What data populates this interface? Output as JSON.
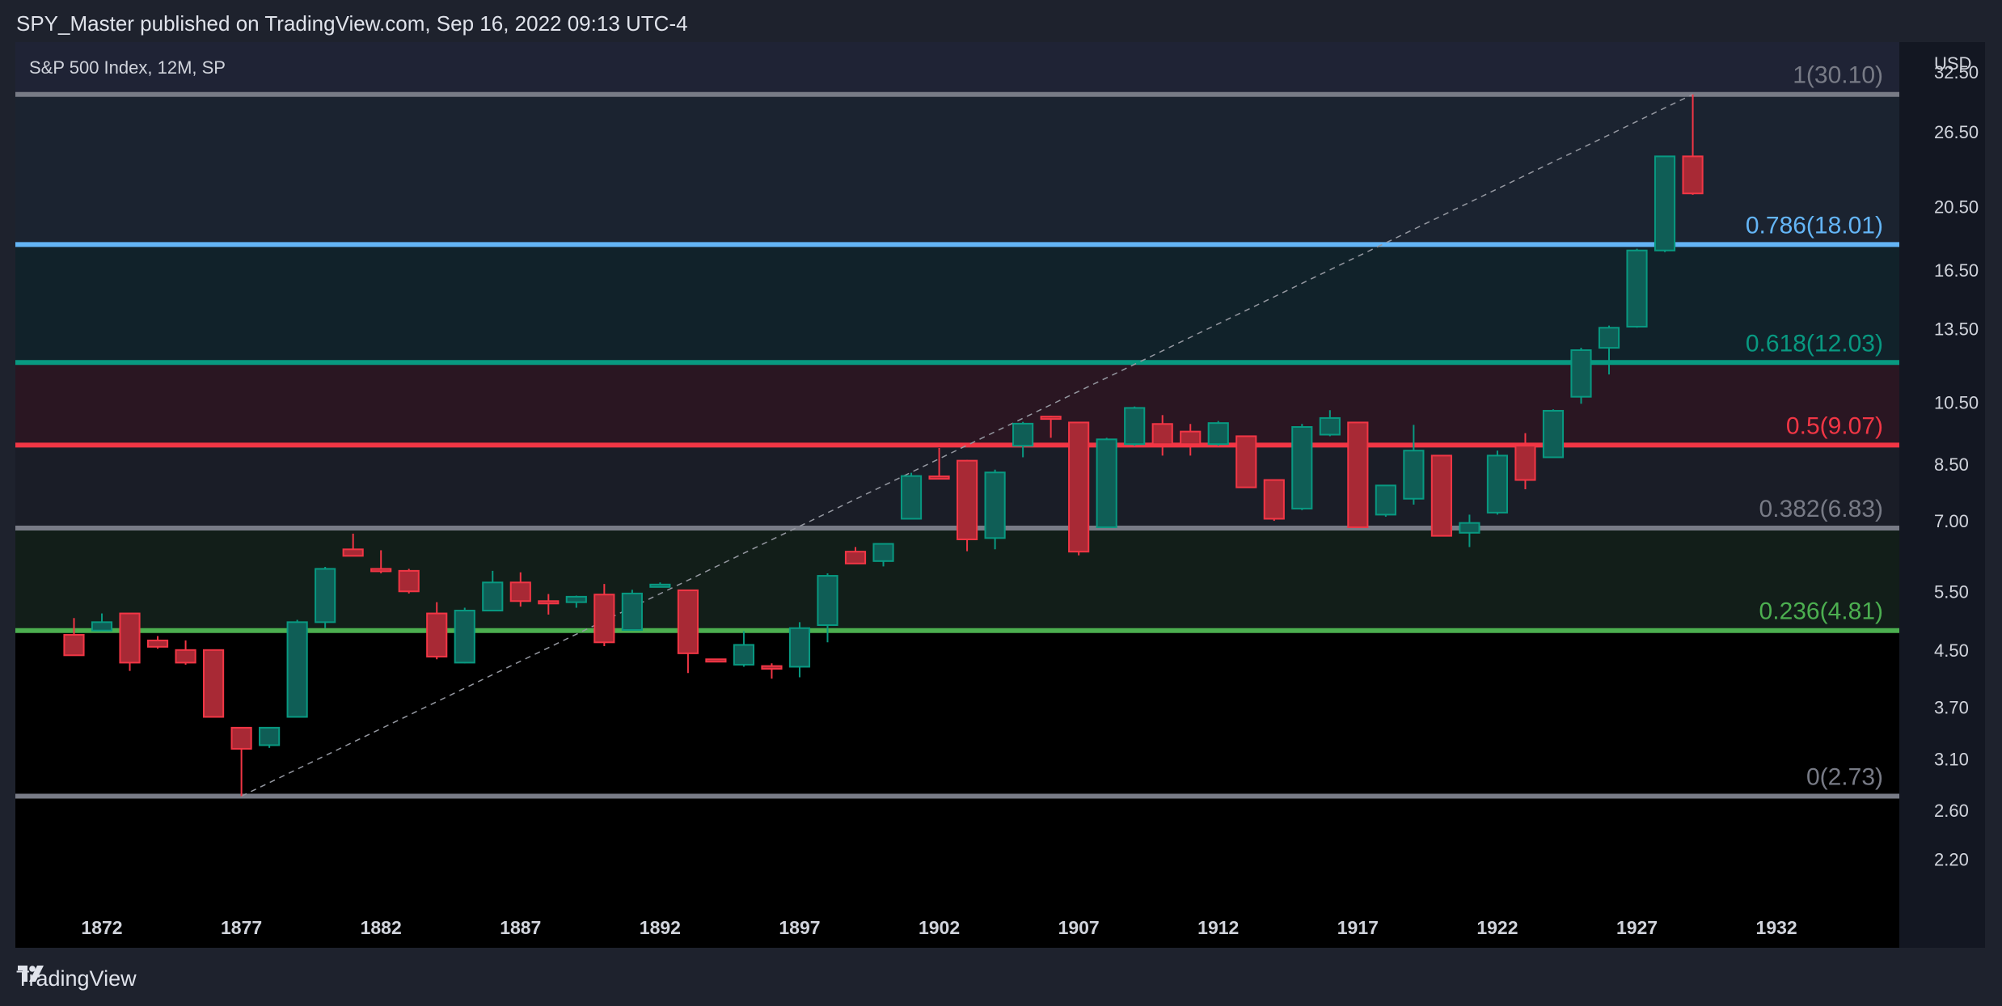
{
  "header": {
    "published": "SPY_Master published on TradingView.com, Sep 16, 2022 09:13 UTC-4"
  },
  "footer": {
    "brand": "TradingView"
  },
  "chart_data": {
    "type": "candlestick",
    "title": "S&P 500 Index, 12M, SP",
    "currency": "USD",
    "scale": "log",
    "ylim": [
      2.0,
      36.0
    ],
    "xlim": [
      1868.9,
      1936.4
    ],
    "y_ticks": [
      "32.50",
      "26.50",
      "20.50",
      "16.50",
      "13.50",
      "10.50",
      "8.50",
      "7.00",
      "5.50",
      "4.50",
      "3.70",
      "3.10",
      "2.60",
      "2.20"
    ],
    "x_ticks": [
      "1872",
      "1877",
      "1882",
      "1887",
      "1892",
      "1897",
      "1902",
      "1907",
      "1912",
      "1917",
      "1922",
      "1927",
      "1932"
    ],
    "fib_levels": [
      {
        "level": "1",
        "price": 30.1,
        "label": "1(30.10)",
        "color": "#787b86",
        "fill": "#1f2335"
      },
      {
        "level": "0.786",
        "price": 18.01,
        "label": "0.786(18.01)",
        "color": "#64b5f6",
        "fill": "#1b2330"
      },
      {
        "level": "0.618",
        "price": 12.03,
        "label": "0.618(12.03)",
        "color": "#089981",
        "fill": "#11222a"
      },
      {
        "level": "0.5",
        "price": 9.07,
        "label": "0.5(9.07)",
        "color": "#f23645",
        "fill": "#2a1622"
      },
      {
        "level": "0.382",
        "price": 6.83,
        "label": "0.382(6.83)",
        "color": "#787b86",
        "fill": "#1a1d27"
      },
      {
        "level": "0.236",
        "price": 4.81,
        "label": "0.236(4.81)",
        "color": "#4caf50",
        "fill": "#121e19"
      },
      {
        "level": "0",
        "price": 2.73,
        "label": "0(2.73)",
        "color": "#787b86",
        "fill": "#000000"
      }
    ],
    "trend_line": {
      "from": {
        "year": 1877,
        "price": 2.73
      },
      "to": {
        "year": 1929,
        "price": 30.1
      }
    },
    "candles": [
      {
        "year": 1871,
        "o": 4.74,
        "h": 5.02,
        "l": 4.42,
        "c": 4.42
      },
      {
        "year": 1872,
        "o": 4.81,
        "h": 5.1,
        "l": 4.85,
        "c": 4.95
      },
      {
        "year": 1873,
        "o": 5.1,
        "h": 5.1,
        "l": 4.19,
        "c": 4.31
      },
      {
        "year": 1874,
        "o": 4.65,
        "h": 4.72,
        "l": 4.52,
        "c": 4.55
      },
      {
        "year": 1875,
        "o": 4.5,
        "h": 4.65,
        "l": 4.28,
        "c": 4.31
      },
      {
        "year": 1876,
        "o": 4.5,
        "h": 4.5,
        "l": 3.58,
        "c": 3.58
      },
      {
        "year": 1877,
        "o": 3.45,
        "h": 3.45,
        "l": 2.73,
        "c": 3.21
      },
      {
        "year": 1878,
        "o": 3.25,
        "h": 3.45,
        "l": 3.22,
        "c": 3.45
      },
      {
        "year": 1879,
        "o": 3.58,
        "h": 4.99,
        "l": 3.58,
        "c": 4.95
      },
      {
        "year": 1880,
        "o": 4.95,
        "h": 5.98,
        "l": 4.85,
        "c": 5.94
      },
      {
        "year": 1881,
        "o": 6.35,
        "h": 6.7,
        "l": 6.21,
        "c": 6.21
      },
      {
        "year": 1882,
        "o": 5.94,
        "h": 6.33,
        "l": 5.85,
        "c": 5.9
      },
      {
        "year": 1883,
        "o": 5.9,
        "h": 5.94,
        "l": 5.46,
        "c": 5.5
      },
      {
        "year": 1884,
        "o": 5.1,
        "h": 5.3,
        "l": 4.36,
        "c": 4.4
      },
      {
        "year": 1885,
        "o": 4.31,
        "h": 5.2,
        "l": 4.3,
        "c": 5.15
      },
      {
        "year": 1886,
        "o": 5.15,
        "h": 5.9,
        "l": 5.15,
        "c": 5.67
      },
      {
        "year": 1887,
        "o": 5.67,
        "h": 5.87,
        "l": 5.22,
        "c": 5.32
      },
      {
        "year": 1888,
        "o": 5.32,
        "h": 5.45,
        "l": 5.08,
        "c": 5.3
      },
      {
        "year": 1889,
        "o": 5.3,
        "h": 5.42,
        "l": 5.2,
        "c": 5.4
      },
      {
        "year": 1890,
        "o": 5.44,
        "h": 5.64,
        "l": 4.56,
        "c": 4.62
      },
      {
        "year": 1891,
        "o": 4.82,
        "h": 5.53,
        "l": 4.85,
        "c": 5.46
      },
      {
        "year": 1892,
        "o": 5.62,
        "h": 5.67,
        "l": 5.6,
        "c": 5.63
      },
      {
        "year": 1893,
        "o": 5.52,
        "h": 5.53,
        "l": 4.16,
        "c": 4.45
      },
      {
        "year": 1894,
        "o": 4.36,
        "h": 4.36,
        "l": 4.32,
        "c": 4.34
      },
      {
        "year": 1895,
        "o": 4.28,
        "h": 4.8,
        "l": 4.25,
        "c": 4.58
      },
      {
        "year": 1896,
        "o": 4.26,
        "h": 4.3,
        "l": 4.08,
        "c": 4.22
      },
      {
        "year": 1897,
        "o": 4.25,
        "h": 4.95,
        "l": 4.1,
        "c": 4.85
      },
      {
        "year": 1898,
        "o": 4.9,
        "h": 5.85,
        "l": 4.62,
        "c": 5.8
      },
      {
        "year": 1899,
        "o": 6.3,
        "h": 6.4,
        "l": 6.05,
        "c": 6.05
      },
      {
        "year": 1900,
        "o": 6.1,
        "h": 6.47,
        "l": 5.99,
        "c": 6.47
      },
      {
        "year": 1901,
        "o": 7.05,
        "h": 8.25,
        "l": 7.05,
        "c": 8.16
      },
      {
        "year": 1902,
        "o": 8.15,
        "h": 8.98,
        "l": 8.07,
        "c": 8.1
      },
      {
        "year": 1903,
        "o": 8.6,
        "h": 8.62,
        "l": 6.31,
        "c": 6.57
      },
      {
        "year": 1904,
        "o": 6.6,
        "h": 8.34,
        "l": 6.35,
        "c": 8.26
      },
      {
        "year": 1905,
        "o": 9.05,
        "h": 9.82,
        "l": 8.7,
        "c": 9.76
      },
      {
        "year": 1906,
        "o": 10.0,
        "h": 10.03,
        "l": 9.3,
        "c": 9.95
      },
      {
        "year": 1907,
        "o": 9.8,
        "h": 9.8,
        "l": 6.22,
        "c": 6.3
      },
      {
        "year": 1908,
        "o": 6.85,
        "h": 9.3,
        "l": 6.85,
        "c": 9.25
      },
      {
        "year": 1909,
        "o": 9.1,
        "h": 10.35,
        "l": 9.05,
        "c": 10.3
      },
      {
        "year": 1910,
        "o": 9.75,
        "h": 10.05,
        "l": 8.75,
        "c": 9.1
      },
      {
        "year": 1911,
        "o": 9.5,
        "h": 9.75,
        "l": 8.75,
        "c": 9.1
      },
      {
        "year": 1912,
        "o": 9.1,
        "h": 9.85,
        "l": 9.05,
        "c": 9.78
      },
      {
        "year": 1913,
        "o": 9.35,
        "h": 9.35,
        "l": 7.85,
        "c": 7.85
      },
      {
        "year": 1914,
        "o": 8.05,
        "h": 8.05,
        "l": 7.0,
        "c": 7.05
      },
      {
        "year": 1915,
        "o": 7.3,
        "h": 9.75,
        "l": 7.26,
        "c": 9.65
      },
      {
        "year": 1916,
        "o": 9.4,
        "h": 10.22,
        "l": 9.35,
        "c": 9.95
      },
      {
        "year": 1917,
        "o": 9.8,
        "h": 9.8,
        "l": 6.85,
        "c": 6.85
      },
      {
        "year": 1918,
        "o": 7.15,
        "h": 7.9,
        "l": 7.1,
        "c": 7.9
      },
      {
        "year": 1919,
        "o": 7.55,
        "h": 9.72,
        "l": 7.4,
        "c": 8.9
      },
      {
        "year": 1920,
        "o": 8.75,
        "h": 8.75,
        "l": 6.65,
        "c": 6.65
      },
      {
        "year": 1921,
        "o": 6.72,
        "h": 7.15,
        "l": 6.4,
        "c": 6.95
      },
      {
        "year": 1922,
        "o": 7.2,
        "h": 8.9,
        "l": 7.15,
        "c": 8.75
      },
      {
        "year": 1923,
        "o": 9.05,
        "h": 9.45,
        "l": 7.8,
        "c": 8.05
      },
      {
        "year": 1924,
        "o": 8.7,
        "h": 10.25,
        "l": 8.7,
        "c": 10.2
      },
      {
        "year": 1925,
        "o": 10.7,
        "h": 12.65,
        "l": 10.45,
        "c": 12.55
      },
      {
        "year": 1926,
        "o": 12.65,
        "h": 13.65,
        "l": 11.55,
        "c": 13.55
      },
      {
        "year": 1927,
        "o": 13.6,
        "h": 17.75,
        "l": 13.55,
        "c": 17.65
      },
      {
        "year": 1928,
        "o": 17.65,
        "h": 24.35,
        "l": 17.55,
        "c": 24.35
      },
      {
        "year": 1929,
        "o": 24.35,
        "h": 30.1,
        "l": 21.35,
        "c": 21.45
      }
    ]
  }
}
